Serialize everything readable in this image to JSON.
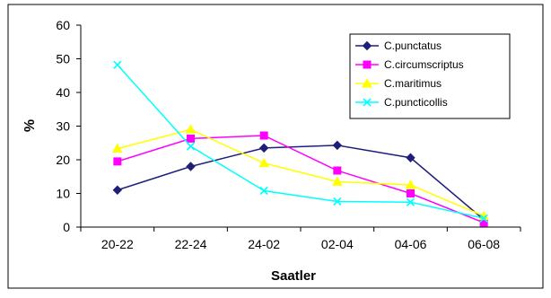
{
  "chart_data": {
    "type": "line",
    "title": "",
    "xlabel": "Saatler",
    "ylabel": "%",
    "categories": [
      "20-22",
      "22-24",
      "24-02",
      "02-04",
      "04-06",
      "06-08"
    ],
    "ylim": [
      0,
      60
    ],
    "yticks": [
      0,
      10,
      20,
      30,
      40,
      50,
      60
    ],
    "grid": false,
    "legend_position": "top-right",
    "series": [
      {
        "name": "C.punctatus",
        "color": "#1f1f7a",
        "marker": "diamond",
        "values": [
          11,
          18,
          23.5,
          24.3,
          20.6,
          2.2
        ]
      },
      {
        "name": "C.circumscriptus",
        "color": "#ff00ff",
        "marker": "square",
        "values": [
          19.5,
          26.3,
          27.2,
          16.8,
          10,
          1.3
        ]
      },
      {
        "name": "C.maritimus",
        "color": "#ffff00",
        "marker": "triangle",
        "values": [
          23.3,
          29,
          19,
          13.5,
          12.5,
          3.3
        ]
      },
      {
        "name": "C.puncticollis",
        "color": "#00ffff",
        "marker": "x",
        "values": [
          48.2,
          24,
          10.8,
          7.6,
          7.4,
          2.6
        ]
      }
    ]
  }
}
